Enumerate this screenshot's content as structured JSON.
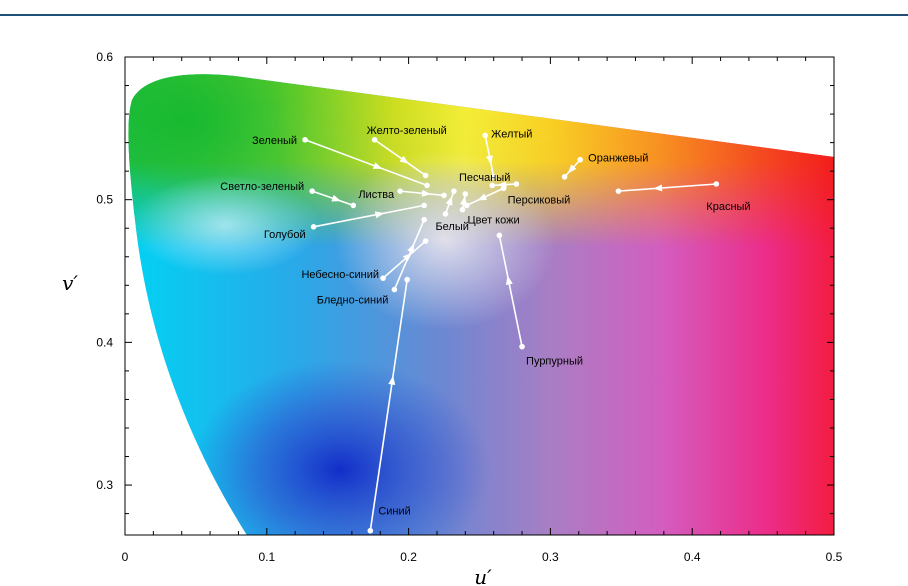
{
  "chart_data": {
    "type": "scatter",
    "title": "",
    "xlabel": "u′",
    "ylabel": "v′",
    "xlim": [
      0,
      0.5
    ],
    "ylim": [
      0.265,
      0.6
    ],
    "x_ticks": [
      {
        "value": 0,
        "label": "0"
      },
      {
        "value": 0.1,
        "label": "0.1"
      },
      {
        "value": 0.2,
        "label": "0.2"
      },
      {
        "value": 0.3,
        "label": "0.3"
      },
      {
        "value": 0.4,
        "label": "0.4"
      },
      {
        "value": 0.5,
        "label": "0.5"
      }
    ],
    "y_ticks": [
      {
        "value": 0.3,
        "label": "0.3"
      },
      {
        "value": 0.4,
        "label": "0.4"
      },
      {
        "value": 0.5,
        "label": "0.5"
      },
      {
        "value": 0.6,
        "label": "0.6"
      }
    ],
    "grid": false,
    "background": "CIE 1976 u′v′ chromaticity diagram",
    "colors": {
      "arrows": "#ffffff",
      "axis": "#000000",
      "top_rule": "#1f4e79"
    },
    "arrows": [
      {
        "label": "Зеленый",
        "from": [
          0.127,
          0.542
        ],
        "to": [
          0.213,
          0.51
        ]
      },
      {
        "label": "Желто-зеленый",
        "from": [
          0.176,
          0.542
        ],
        "to": [
          0.212,
          0.517
        ]
      },
      {
        "label": "Желтый",
        "from": [
          0.254,
          0.545
        ],
        "to": [
          0.26,
          0.516
        ]
      },
      {
        "label": "Оранжевый",
        "from": [
          0.321,
          0.528
        ],
        "to": [
          0.31,
          0.516
        ]
      },
      {
        "label": "Песчаный",
        "from": [
          0.276,
          0.511
        ],
        "to": [
          0.259,
          0.51
        ]
      },
      {
        "label": "Персиковый",
        "from": [
          0.267,
          0.508
        ],
        "to": [
          0.241,
          0.496
        ]
      },
      {
        "label": "Красный",
        "from": [
          0.417,
          0.511
        ],
        "to": [
          0.348,
          0.506
        ]
      },
      {
        "label": "Светло-зеленый",
        "from": [
          0.132,
          0.506
        ],
        "to": [
          0.161,
          0.496
        ]
      },
      {
        "label": "Листва",
        "from": [
          0.194,
          0.506
        ],
        "to": [
          0.225,
          0.503
        ]
      },
      {
        "label": "Голубой",
        "from": [
          0.133,
          0.481
        ],
        "to": [
          0.211,
          0.496
        ]
      },
      {
        "label": "Белый",
        "from": [
          0.226,
          0.49
        ],
        "to": [
          0.232,
          0.506
        ]
      },
      {
        "label": "Цвет кожи",
        "from": [
          0.238,
          0.493
        ],
        "to": [
          0.24,
          0.504
        ]
      },
      {
        "label": "Пурпурный",
        "from": [
          0.28,
          0.397
        ],
        "to": [
          0.264,
          0.475
        ]
      },
      {
        "label": "Небесно-синий",
        "from": [
          0.182,
          0.445
        ],
        "to": [
          0.212,
          0.471
        ]
      },
      {
        "label": "Бледно-синий",
        "from": [
          0.19,
          0.437
        ],
        "to": [
          0.211,
          0.486
        ]
      },
      {
        "label": "Синий",
        "from": [
          0.173,
          0.268
        ],
        "to": [
          0.199,
          0.444
        ]
      }
    ]
  }
}
